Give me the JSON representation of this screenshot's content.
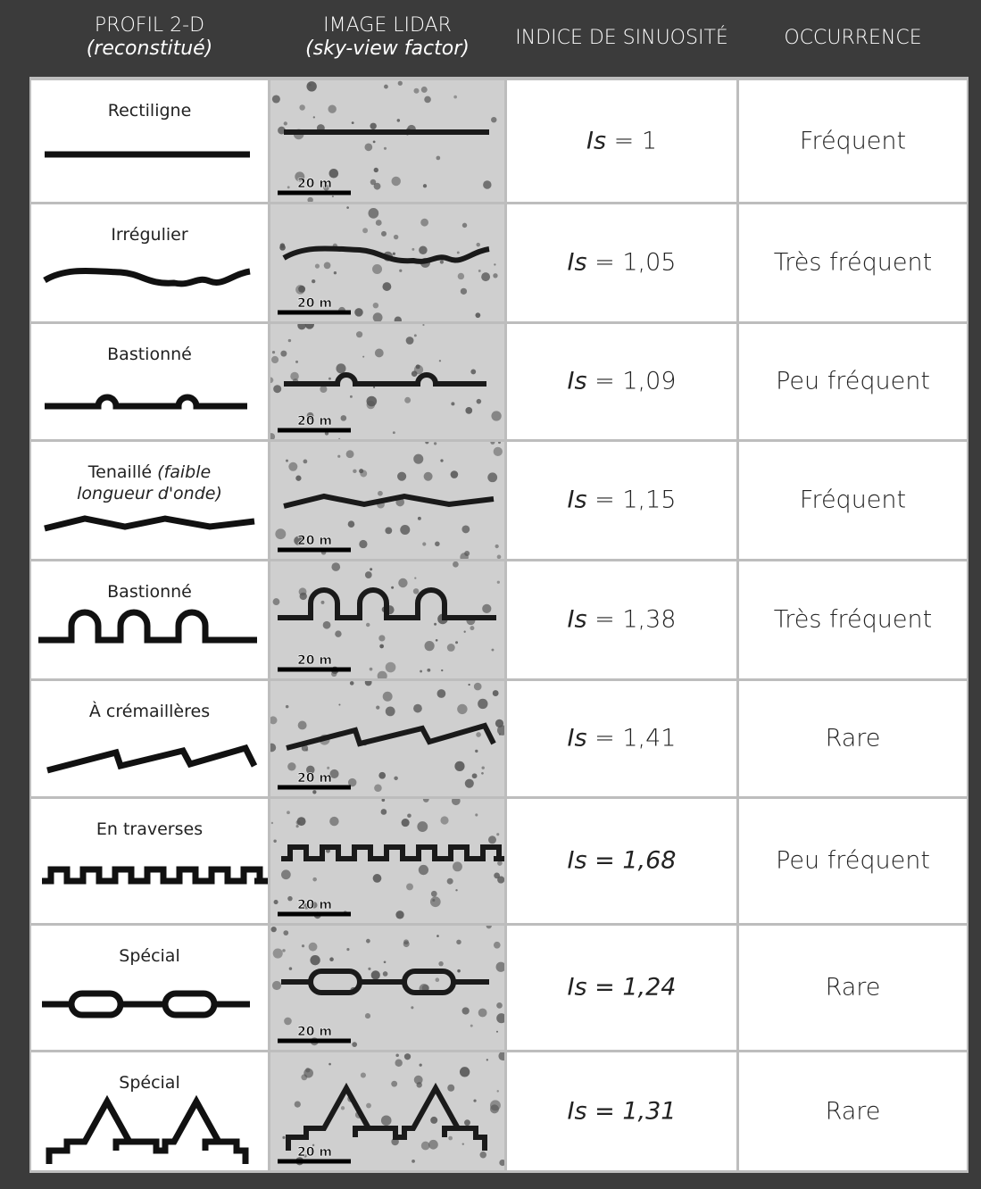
{
  "header": {
    "columns": [
      {
        "title": "PROFIL 2-D",
        "subtitle": "(reconstitué)"
      },
      {
        "title": "IMAGE LIDAR",
        "subtitle": "(sky-view factor)"
      },
      {
        "title": "INDICE DE SINUOSITÉ"
      },
      {
        "title": "OCCURRENCE"
      }
    ]
  },
  "rows": [
    {
      "profile": "Rectiligne",
      "scale": "20 m",
      "index_symbol": "Is",
      "index_value": "= 1",
      "occurrence": "Fréquent"
    },
    {
      "profile": "Irrégulier",
      "scale": "20 m",
      "index_symbol": "Is",
      "index_value": "= 1,05",
      "occurrence": "Très fréquent"
    },
    {
      "profile": "Bastionné",
      "scale": "20 m",
      "index_symbol": "Is",
      "index_value": "= 1,09",
      "occurrence": "Peu fréquent"
    },
    {
      "profile": "Tenaillé",
      "profile_note": "(faible longueur d'onde)",
      "scale": "20 m",
      "index_symbol": "Is",
      "index_value": "= 1,15",
      "occurrence": "Fréquent"
    },
    {
      "profile": "Bastionné",
      "scale": "20 m",
      "index_symbol": "Is",
      "index_value": "= 1,38",
      "occurrence": "Très fréquent"
    },
    {
      "profile": "À crémaillères",
      "scale": "20 m",
      "index_symbol": "Is",
      "index_value": "= 1,41",
      "occurrence": "Rare"
    },
    {
      "profile": "En traverses",
      "scale": "20 m",
      "index_symbol": "Is",
      "index_value": "= 1,68",
      "occurrence": "Peu fréquent"
    },
    {
      "profile": "Spécial",
      "scale": "20 m",
      "index_symbol": "Is",
      "index_value": "= 1,24",
      "occurrence": "Rare"
    },
    {
      "profile": "Spécial",
      "scale": "20 m",
      "index_symbol": "Is",
      "index_value": "= 1,31",
      "occurrence": "Rare"
    }
  ]
}
